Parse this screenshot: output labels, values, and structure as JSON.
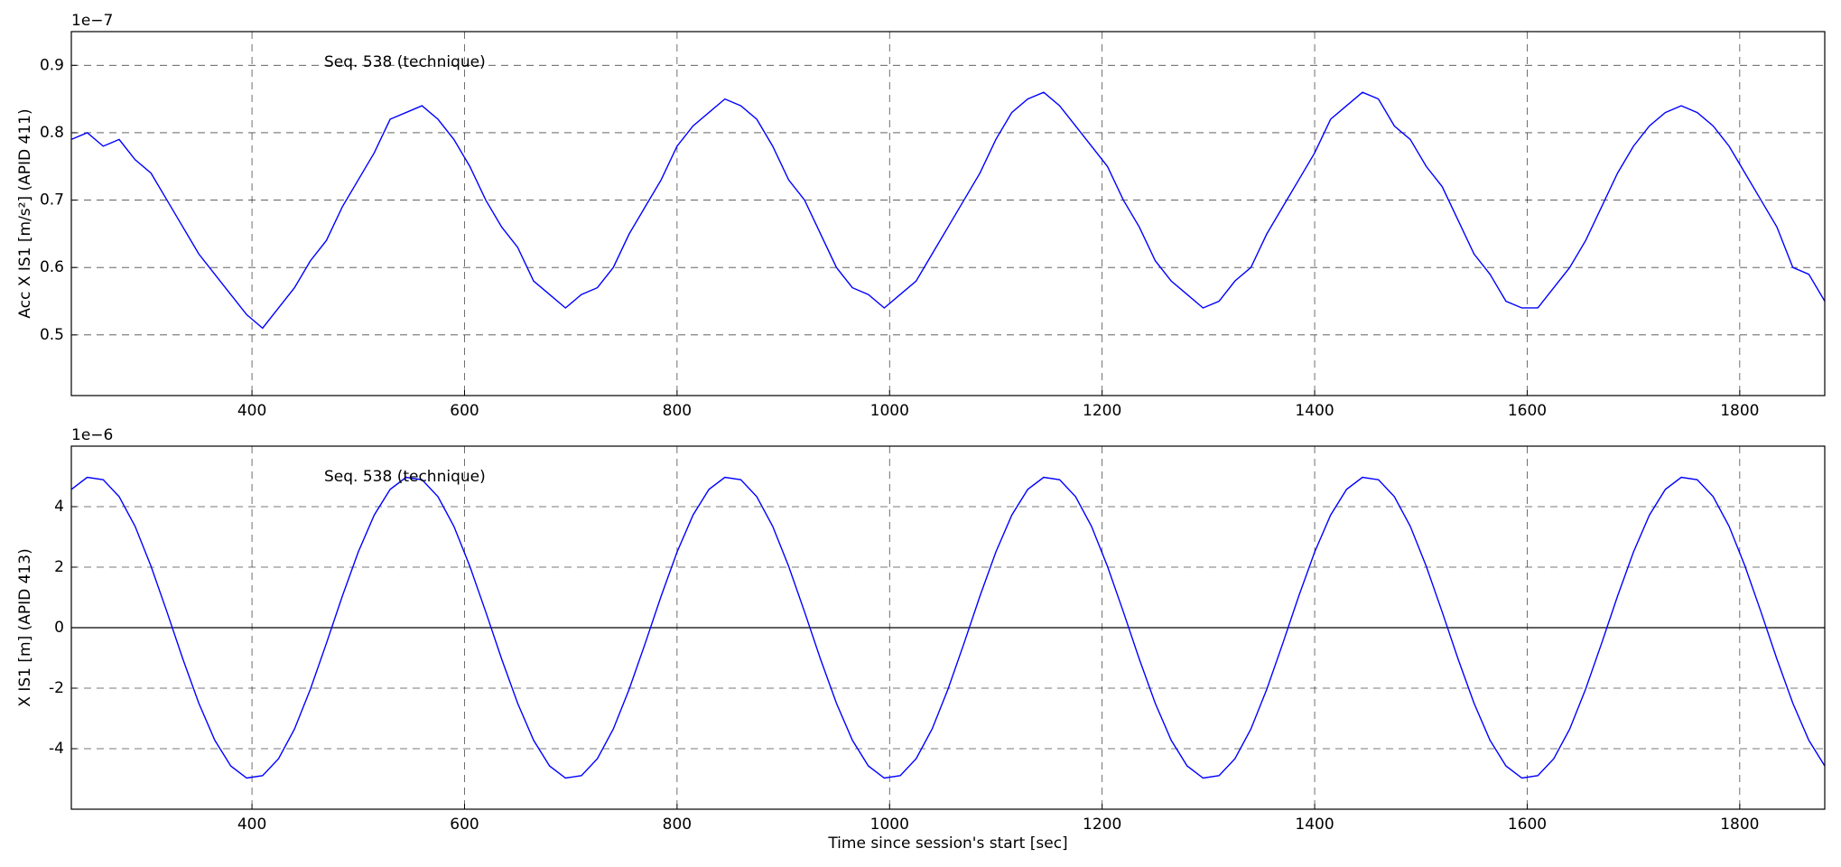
{
  "chart_data": [
    {
      "type": "line",
      "y_offset_text": "1e−7",
      "annotation": "Seq. 538 (technique)",
      "ylabel": "Acc X IS1  [m/s²] (APID 411)",
      "color": "#0000ff",
      "grid": true,
      "zero_line": false,
      "xlim": [
        230,
        1880
      ],
      "xticks": [
        400,
        600,
        800,
        1000,
        1200,
        1400,
        1600,
        1800
      ],
      "ylim": [
        0.41,
        0.95
      ],
      "yticks": [
        0.5,
        0.6,
        0.7,
        0.8,
        0.9
      ],
      "x": [
        230,
        245,
        260,
        275,
        290,
        305,
        320,
        335,
        350,
        365,
        380,
        395,
        410,
        425,
        440,
        455,
        470,
        485,
        500,
        515,
        530,
        545,
        560,
        575,
        590,
        605,
        620,
        635,
        650,
        665,
        680,
        695,
        710,
        725,
        740,
        755,
        770,
        785,
        800,
        815,
        830,
        845,
        860,
        875,
        890,
        905,
        920,
        935,
        950,
        965,
        980,
        995,
        1010,
        1025,
        1040,
        1055,
        1070,
        1085,
        1100,
        1115,
        1130,
        1145,
        1160,
        1175,
        1190,
        1205,
        1220,
        1235,
        1250,
        1265,
        1280,
        1295,
        1310,
        1325,
        1340,
        1355,
        1370,
        1385,
        1400,
        1415,
        1430,
        1445,
        1460,
        1475,
        1490,
        1505,
        1520,
        1535,
        1550,
        1565,
        1580,
        1595,
        1610,
        1625,
        1640,
        1655,
        1670,
        1685,
        1700,
        1715,
        1730,
        1745,
        1760,
        1775,
        1790,
        1805,
        1820,
        1835,
        1850,
        1865,
        1880
      ],
      "values": [
        0.79,
        0.8,
        0.78,
        0.79,
        0.76,
        0.74,
        0.7,
        0.66,
        0.62,
        0.59,
        0.56,
        0.53,
        0.51,
        0.54,
        0.57,
        0.61,
        0.64,
        0.69,
        0.73,
        0.77,
        0.82,
        0.83,
        0.84,
        0.82,
        0.79,
        0.75,
        0.7,
        0.66,
        0.63,
        0.58,
        0.56,
        0.54,
        0.56,
        0.57,
        0.6,
        0.65,
        0.69,
        0.73,
        0.78,
        0.81,
        0.83,
        0.85,
        0.84,
        0.82,
        0.78,
        0.73,
        0.7,
        0.65,
        0.6,
        0.57,
        0.56,
        0.54,
        0.56,
        0.58,
        0.62,
        0.66,
        0.7,
        0.74,
        0.79,
        0.83,
        0.85,
        0.86,
        0.84,
        0.81,
        0.78,
        0.75,
        0.7,
        0.66,
        0.61,
        0.58,
        0.56,
        0.54,
        0.55,
        0.58,
        0.6,
        0.65,
        0.69,
        0.73,
        0.77,
        0.82,
        0.84,
        0.86,
        0.85,
        0.81,
        0.79,
        0.75,
        0.72,
        0.67,
        0.62,
        0.59,
        0.55,
        0.54,
        0.54,
        0.57,
        0.6,
        0.64,
        0.69,
        0.74,
        0.78,
        0.81,
        0.83,
        0.84,
        0.83,
        0.81,
        0.78,
        0.74,
        0.7,
        0.66,
        0.6,
        0.59,
        0.55
      ]
    },
    {
      "type": "line",
      "y_offset_text": "1e−6",
      "annotation": "Seq. 538 (technique)",
      "ylabel": "X IS1  [m] (APID 413)",
      "xlabel": "Time since session's start [sec]",
      "color": "#0000ff",
      "grid": true,
      "zero_line": true,
      "xlim": [
        230,
        1880
      ],
      "xticks": [
        400,
        600,
        800,
        1000,
        1200,
        1400,
        1600,
        1800
      ],
      "ylim": [
        -6,
        6
      ],
      "yticks": [
        -4,
        -2,
        0,
        2,
        4
      ],
      "x": [
        230,
        245,
        260,
        275,
        290,
        305,
        320,
        335,
        350,
        365,
        380,
        395,
        410,
        425,
        440,
        455,
        470,
        485,
        500,
        515,
        530,
        545,
        560,
        575,
        590,
        605,
        620,
        635,
        650,
        665,
        680,
        695,
        710,
        725,
        740,
        755,
        770,
        785,
        800,
        815,
        830,
        845,
        860,
        875,
        890,
        905,
        920,
        935,
        950,
        965,
        980,
        995,
        1010,
        1025,
        1040,
        1055,
        1070,
        1085,
        1100,
        1115,
        1130,
        1145,
        1160,
        1175,
        1190,
        1205,
        1220,
        1235,
        1250,
        1265,
        1280,
        1295,
        1310,
        1325,
        1340,
        1355,
        1370,
        1385,
        1400,
        1415,
        1430,
        1445,
        1460,
        1475,
        1490,
        1505,
        1520,
        1535,
        1550,
        1565,
        1580,
        1595,
        1610,
        1625,
        1640,
        1655,
        1670,
        1685,
        1700,
        1715,
        1730,
        1745,
        1760,
        1775,
        1790,
        1805,
        1820,
        1835,
        1850,
        1865,
        1880
      ],
      "values": [
        4.57,
        4.97,
        4.89,
        4.33,
        3.35,
        2.03,
        0.52,
        -1.04,
        -2.5,
        -3.72,
        -4.57,
        -4.97,
        -4.89,
        -4.33,
        -3.35,
        -2.03,
        -0.52,
        1.04,
        2.5,
        3.72,
        4.57,
        4.97,
        4.89,
        4.33,
        3.35,
        2.03,
        0.52,
        -1.04,
        -2.5,
        -3.72,
        -4.57,
        -4.97,
        -4.89,
        -4.33,
        -3.35,
        -2.03,
        -0.52,
        1.04,
        2.5,
        3.72,
        4.57,
        4.97,
        4.89,
        4.33,
        3.35,
        2.03,
        0.52,
        -1.04,
        -2.5,
        -3.72,
        -4.57,
        -4.97,
        -4.89,
        -4.33,
        -3.35,
        -2.03,
        -0.52,
        1.04,
        2.5,
        3.72,
        4.57,
        4.97,
        4.89,
        4.33,
        3.35,
        2.03,
        0.52,
        -1.04,
        -2.5,
        -3.72,
        -4.57,
        -4.97,
        -4.89,
        -4.33,
        -3.35,
        -2.03,
        -0.52,
        1.04,
        2.5,
        3.72,
        4.57,
        4.97,
        4.89,
        4.33,
        3.35,
        2.03,
        0.52,
        -1.04,
        -2.5,
        -3.72,
        -4.57,
        -4.97,
        -4.89,
        -4.33,
        -3.35,
        -2.03,
        -0.52,
        1.04,
        2.5,
        3.72,
        4.57,
        4.97,
        4.89,
        4.33,
        3.35,
        2.03,
        0.52,
        -1.04,
        -2.5,
        -3.72,
        -4.57
      ]
    }
  ]
}
